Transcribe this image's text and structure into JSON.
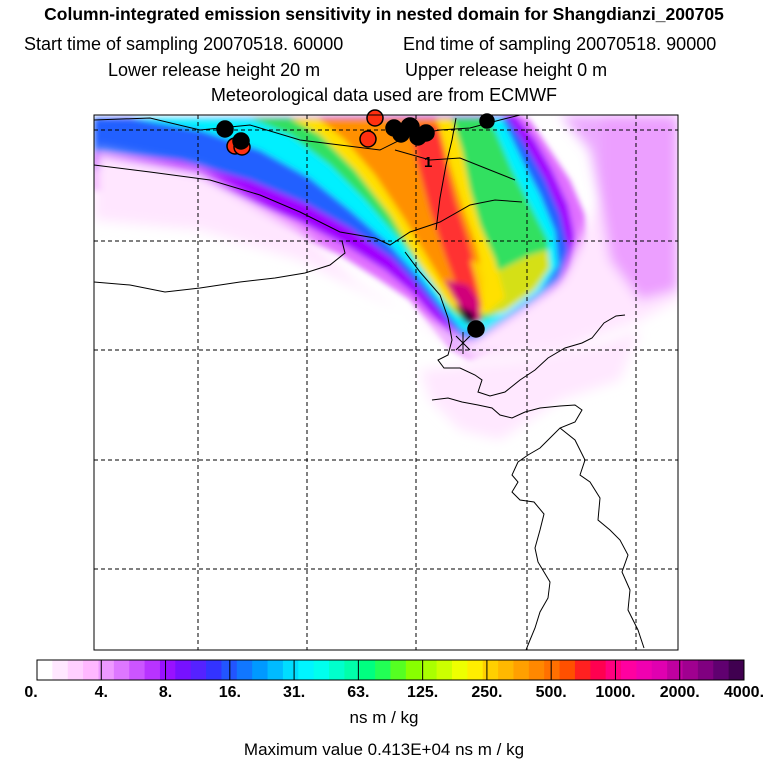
{
  "header": {
    "title": "Column-integrated emission sensitivity in nested domain for Shangdianzi_200705",
    "start_label": "Start time of sampling 20070518. 60000",
    "end_label": "End time of sampling 20070518. 90000",
    "lower_label": "Lower release height   20 m",
    "upper_label": "Upper release height    0 m",
    "met_label": "Meteorological data used are from ECMWF"
  },
  "map": {
    "marker_label": "1",
    "colors": {
      "low": "#ffe6ff",
      "mid_pink": "#e070ff",
      "violet": "#a000ff",
      "blue": "#2060ff",
      "cyan": "#00f0ff",
      "green": "#30e060",
      "yellow": "#ffe000",
      "orange": "#ff9000",
      "red": "#ff3030",
      "magenta": "#d0007a",
      "dark": "#300030"
    }
  },
  "colorbar": {
    "tick_labels": [
      "0.",
      "4.",
      "8.",
      "16.",
      "31.",
      "63.",
      "125.",
      "250.",
      "500.",
      "1000.",
      "2000.",
      "4000."
    ],
    "colors": [
      "#ffffff",
      "#ffe8ff",
      "#ffd0ff",
      "#ffb8ff",
      "#ee99ff",
      "#dd77ff",
      "#cc55ff",
      "#b833ff",
      "#9911ff",
      "#7711ff",
      "#5522ff",
      "#3333ff",
      "#2255ff",
      "#1177ff",
      "#0099ff",
      "#00bbff",
      "#00ddff",
      "#00f5ff",
      "#00ffee",
      "#00ffcc",
      "#00ffaa",
      "#00ff80",
      "#22ff55",
      "#55ff22",
      "#88ff00",
      "#aaff00",
      "#ccff00",
      "#eeff00",
      "#ffee00",
      "#ffd000",
      "#ffb800",
      "#ffa000",
      "#ff8800",
      "#ff7000",
      "#ff5000",
      "#ff2020",
      "#ff0050",
      "#ff0080",
      "#ff00a0",
      "#f000b0",
      "#e000b0",
      "#c000a0",
      "#a00090",
      "#800080",
      "#600070",
      "#400050"
    ],
    "units": "ns m / kg",
    "max_label": "Maximum value  0.413E+04 ns m / kg"
  }
}
